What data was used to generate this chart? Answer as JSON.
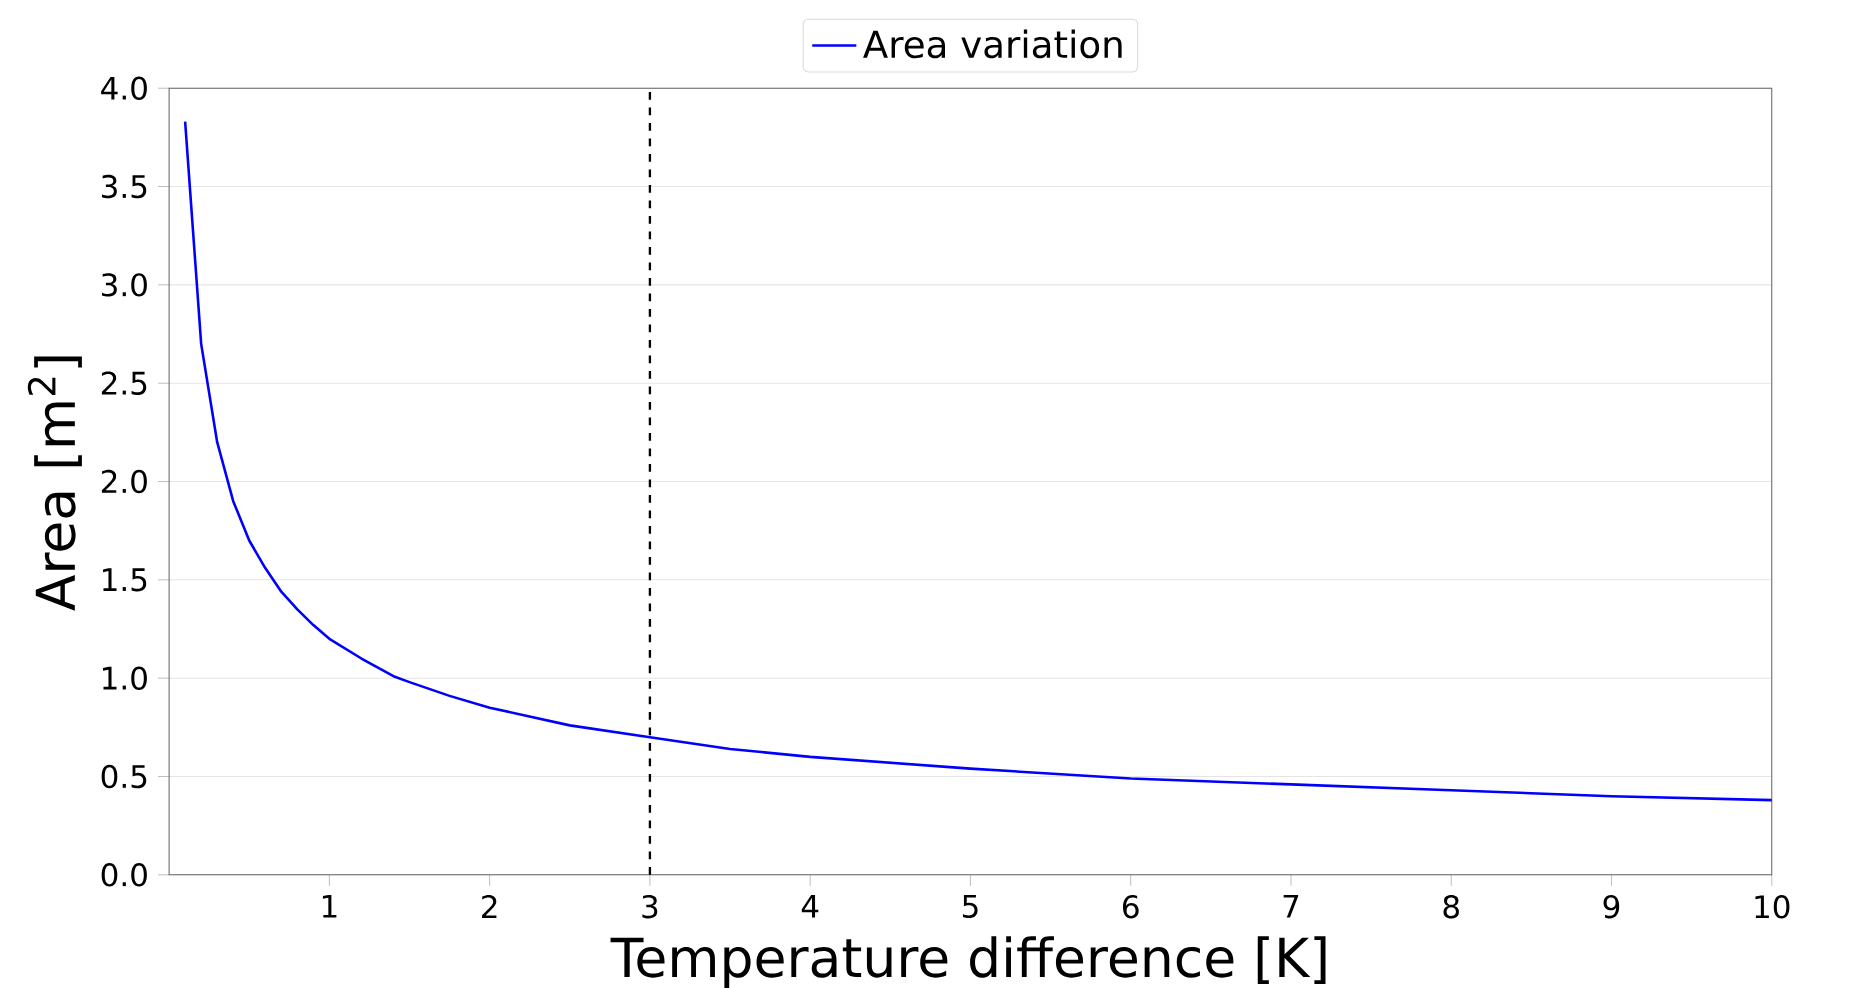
{
  "chart_data": {
    "type": "line",
    "xlabel": "Temperature difference [K]",
    "ylabel": "Area [m$^{2}$]",
    "x": [
      0.1,
      0.2,
      0.3,
      0.4,
      0.5,
      0.6,
      0.7,
      0.8,
      0.9,
      1,
      1.2,
      1.4,
      1.5,
      1.75,
      2,
      2.5,
      3,
      3.5,
      4,
      4.5,
      5,
      6,
      7,
      8,
      9,
      10
    ],
    "series": [
      {
        "name": "Area variation",
        "color": "#0000ff",
        "values": [
          3.83,
          2.7,
          2.2,
          1.9,
          1.7,
          1.56,
          1.44,
          1.35,
          1.27,
          1.2,
          1.1,
          1.01,
          0.98,
          0.91,
          0.85,
          0.76,
          0.7,
          0.64,
          0.6,
          0.57,
          0.54,
          0.49,
          0.46,
          0.43,
          0.4,
          0.38
        ]
      }
    ],
    "xlim": [
      0,
      10
    ],
    "ylim": [
      0,
      4
    ],
    "xticks": [
      1,
      2,
      3,
      4,
      5,
      6,
      7,
      8,
      9,
      10
    ],
    "yticks": [
      {
        "value": 0,
        "label": "0.0"
      },
      {
        "value": 0.5,
        "label": "0.5"
      },
      {
        "value": 1,
        "label": "1.0"
      },
      {
        "value": 1.5,
        "label": "1.5"
      },
      {
        "value": 2,
        "label": "2.0"
      },
      {
        "value": 2.5,
        "label": "2.5"
      },
      {
        "value": 3,
        "label": "3.0"
      },
      {
        "value": 3.5,
        "label": "3.5"
      },
      {
        "value": 4,
        "label": "4.0"
      }
    ],
    "ref_lines": [
      {
        "axis": "x",
        "value": 3,
        "color": "#000000",
        "line_style": "dashed"
      }
    ],
    "grid": "y",
    "legend": "top",
    "line_style": "solid",
    "marker": "none"
  }
}
